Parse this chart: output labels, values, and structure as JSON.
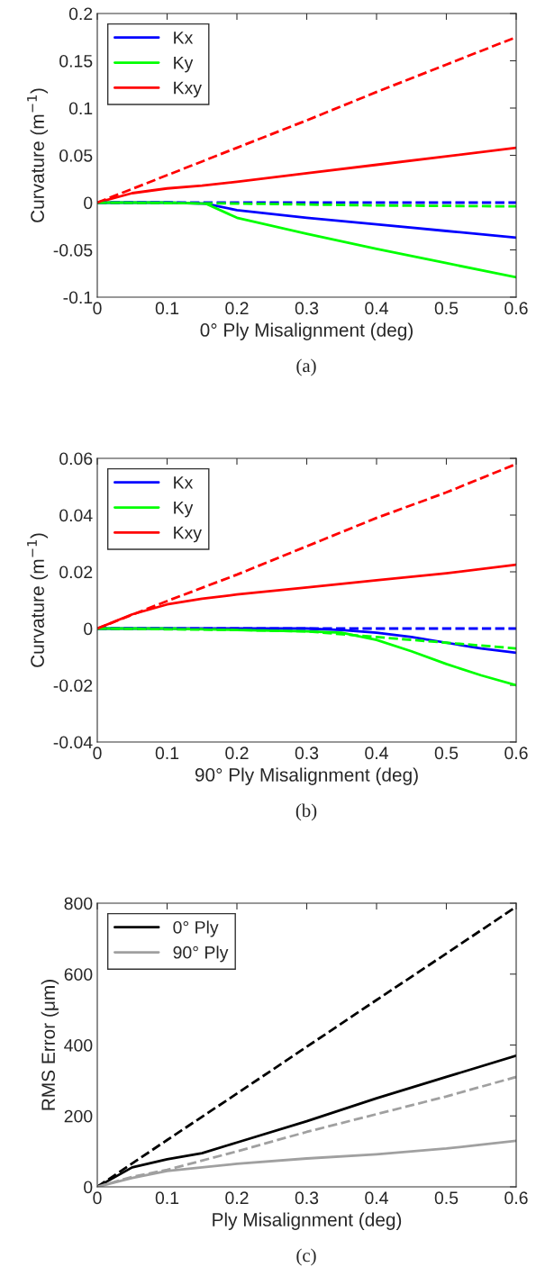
{
  "chart_data": [
    {
      "type": "line",
      "xlabel": "0° Ply Misalignment (deg)",
      "ylabel": "Curvature (m$^{−1}$)",
      "annotations": [
        "(a)"
      ],
      "xlim": [
        0,
        0.6
      ],
      "ylim": [
        -0.1,
        0.2
      ],
      "xticks": [
        0,
        0.1,
        0.2,
        0.3,
        0.4,
        0.5,
        0.6
      ],
      "yticks": [
        -0.1,
        -0.05,
        0,
        0.05,
        0.1,
        0.15,
        0.2
      ],
      "legend": "top left",
      "series": [
        {
          "name": "Kx",
          "color": "#0000ff",
          "line_style": "solid",
          "x": [
            0,
            0.1,
            0.155,
            0.2,
            0.3,
            0.4,
            0.5,
            0.6
          ],
          "values": [
            0,
            0,
            -0.001,
            -0.008,
            -0.016,
            -0.023,
            -0.03,
            -0.037
          ]
        },
        {
          "name": "Ky",
          "color": "#00ff00",
          "line_style": "solid",
          "x": [
            0,
            0.1,
            0.155,
            0.2,
            0.3,
            0.4,
            0.5,
            0.6
          ],
          "values": [
            0,
            0,
            -0.001,
            -0.016,
            -0.033,
            -0.049,
            -0.064,
            -0.079
          ]
        },
        {
          "name": "Kxy",
          "color": "#ff0000",
          "line_style": "solid",
          "x": [
            0,
            0.05,
            0.1,
            0.15,
            0.2,
            0.3,
            0.4,
            0.5,
            0.6
          ],
          "values": [
            0,
            0.01,
            0.015,
            0.018,
            0.022,
            0.031,
            0.04,
            0.049,
            0.058
          ]
        },
        {
          "color": "#0000ff",
          "line_style": "dashed",
          "x": [
            0,
            0.6
          ],
          "values": [
            0,
            0
          ]
        },
        {
          "color": "#00ff00",
          "line_style": "dashed",
          "x": [
            0,
            0.2,
            0.4,
            0.6
          ],
          "values": [
            0,
            -0.001,
            -0.003,
            -0.004
          ]
        },
        {
          "color": "#ff0000",
          "line_style": "dashed",
          "x": [
            0,
            0.1,
            0.2,
            0.3,
            0.4,
            0.5,
            0.6
          ],
          "values": [
            0,
            0.029,
            0.058,
            0.087,
            0.117,
            0.146,
            0.175
          ]
        }
      ]
    },
    {
      "type": "line",
      "xlabel": "90° Ply Misalignment (deg)",
      "ylabel": "Curvature (m$^{−1}$)",
      "annotations": [
        "(b)"
      ],
      "xlim": [
        0,
        0.6
      ],
      "ylim": [
        -0.04,
        0.06
      ],
      "xticks": [
        0,
        0.1,
        0.2,
        0.3,
        0.4,
        0.5,
        0.6
      ],
      "yticks": [
        -0.04,
        -0.02,
        0,
        0.02,
        0.04,
        0.06
      ],
      "legend": "top left",
      "series": [
        {
          "name": "Kx",
          "color": "#0000ff",
          "line_style": "solid",
          "x": [
            0,
            0.3,
            0.35,
            0.4,
            0.45,
            0.5,
            0.55,
            0.6
          ],
          "values": [
            0,
            0,
            -0.0005,
            -0.0015,
            -0.003,
            -0.005,
            -0.007,
            -0.0085
          ]
        },
        {
          "name": "Ky",
          "color": "#00ff00",
          "line_style": "solid",
          "x": [
            0,
            0.1,
            0.2,
            0.3,
            0.35,
            0.4,
            0.45,
            0.5,
            0.55,
            0.6
          ],
          "values": [
            0,
            0,
            -0.0005,
            -0.001,
            -0.0015,
            -0.004,
            -0.008,
            -0.0125,
            -0.0165,
            -0.02
          ]
        },
        {
          "name": "Kxy",
          "color": "#ff0000",
          "line_style": "solid",
          "x": [
            0,
            0.05,
            0.1,
            0.15,
            0.2,
            0.3,
            0.4,
            0.5,
            0.6
          ],
          "values": [
            0,
            0.005,
            0.0085,
            0.0105,
            0.012,
            0.0145,
            0.017,
            0.0195,
            0.0225
          ]
        },
        {
          "color": "#0000ff",
          "line_style": "dashed",
          "x": [
            0,
            0.6
          ],
          "values": [
            0,
            0
          ]
        },
        {
          "color": "#00ff00",
          "line_style": "dashed",
          "x": [
            0,
            0.2,
            0.3,
            0.4,
            0.5,
            0.6
          ],
          "values": [
            0,
            -0.0005,
            -0.001,
            -0.003,
            -0.005,
            -0.007
          ]
        },
        {
          "color": "#ff0000",
          "line_style": "dashed",
          "x": [
            0,
            0.1,
            0.2,
            0.3,
            0.4,
            0.5,
            0.6
          ],
          "values": [
            0,
            0.0097,
            0.019,
            0.029,
            0.039,
            0.048,
            0.058
          ]
        }
      ]
    },
    {
      "type": "line",
      "xlabel": "Ply Misalignment (deg)",
      "ylabel": "RMS Error (μm)",
      "annotations": [
        "(c)"
      ],
      "xlim": [
        0,
        0.6
      ],
      "ylim": [
        0,
        800
      ],
      "xticks": [
        0,
        0.1,
        0.2,
        0.3,
        0.4,
        0.5,
        0.6
      ],
      "yticks": [
        0,
        200,
        400,
        600,
        800
      ],
      "legend": "top left",
      "series": [
        {
          "name": "0° Ply",
          "color": "#000000",
          "line_style": "solid",
          "x": [
            0,
            0.05,
            0.1,
            0.15,
            0.2,
            0.3,
            0.4,
            0.5,
            0.6
          ],
          "values": [
            0,
            55,
            78,
            95,
            125,
            185,
            250,
            310,
            370
          ]
        },
        {
          "name": "90° Ply",
          "color": "#a0a0a0",
          "line_style": "solid",
          "x": [
            0,
            0.05,
            0.1,
            0.15,
            0.2,
            0.3,
            0.4,
            0.5,
            0.6
          ],
          "values": [
            0,
            25,
            45,
            55,
            65,
            80,
            92,
            108,
            130
          ]
        },
        {
          "color": "#000000",
          "line_style": "dashed",
          "x": [
            0,
            0.1,
            0.2,
            0.3,
            0.4,
            0.5,
            0.6
          ],
          "values": [
            0,
            132,
            263,
            395,
            527,
            658,
            790
          ]
        },
        {
          "color": "#a0a0a0",
          "line_style": "dashed",
          "x": [
            0,
            0.05,
            0.1,
            0.2,
            0.3,
            0.4,
            0.5,
            0.6
          ],
          "values": [
            0,
            28,
            48,
            100,
            155,
            205,
            255,
            310
          ]
        }
      ]
    }
  ]
}
